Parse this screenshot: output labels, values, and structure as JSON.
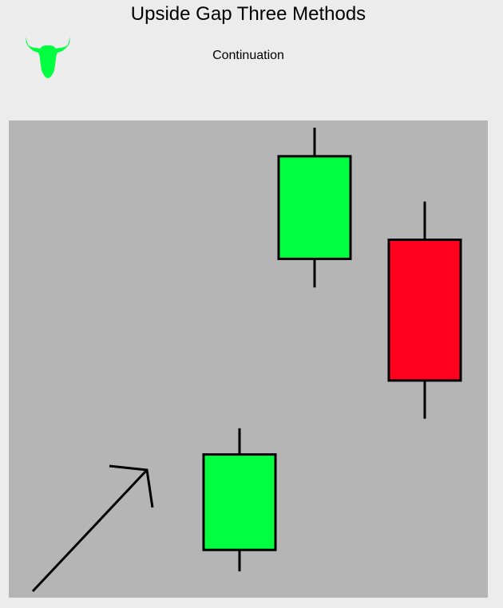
{
  "header": {
    "title": "Upside Gap Three Methods",
    "subtitle": "Continuation",
    "logo_icon": "bull-icon"
  },
  "colors": {
    "page_background": "#ececec",
    "chart_background": "#b5b5b5",
    "bullish": "#00ff3f",
    "bearish": "#ff001e",
    "outline": "#000000"
  },
  "chart_data": {
    "type": "candlestick",
    "title": "",
    "xlabel": "",
    "ylabel": "",
    "grid": false,
    "candles": [
      {
        "open": 10,
        "close": 30,
        "high": 35.5,
        "low": 5.5,
        "color": "bullish"
      },
      {
        "open": 71,
        "close": 92.5,
        "high": 98.5,
        "low": 65,
        "color": "bullish"
      },
      {
        "open": 75,
        "close": 45.5,
        "high": 83,
        "low": 37.5,
        "color": "bearish"
      }
    ],
    "annotations": [
      {
        "type": "arrow",
        "direction": "up-right",
        "meaning": "uptrend"
      }
    ]
  }
}
